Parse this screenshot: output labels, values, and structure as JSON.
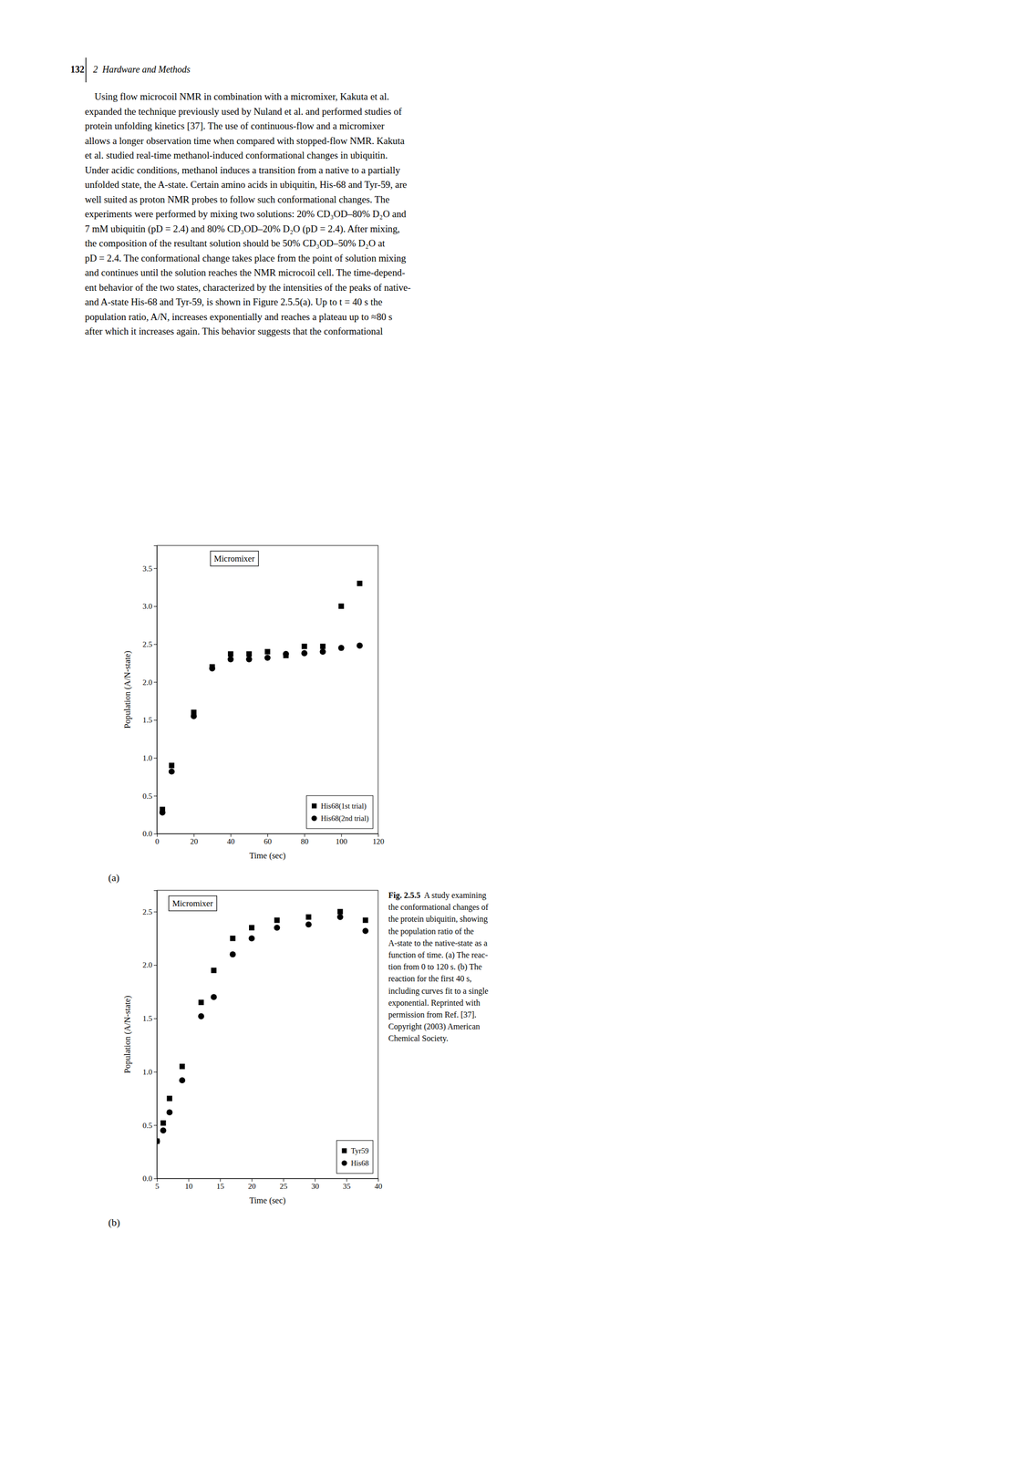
{
  "page": {
    "header_num": "132",
    "header_text": "2  Hardware and Methods",
    "body": [
      "    Using flow microcoil NMR in combination with a micromixer, Kakuta et al.",
      "expanded the technique previously used by Nuland et al. and performed studies of",
      "protein unfolding kinetics [37]. The use of continuous-flow and a micromixer",
      "allows a longer observation time when compared with stopped-flow NMR. Kakuta",
      "et al. studied real-time methanol-induced conformational changes in ubiquitin.",
      "Under acidic conditions, methanol induces a transition from a native to a partially",
      "unfolded state, the A-state. Certain amino acids in ubiquitin, His-68 and Tyr-59, are",
      "well suited as proton NMR probes to follow such conformational changes. The",
      "experiments were performed by mixing two solutions: 20% CD₃OD–80% D₂O and",
      "7 mM ubiquitin (pD = 2.4) and 80% CD₃OD–20% D₂O (pD = 2.4). After mixing,",
      "the composition of the resultant solution should be 50% CD₃OD–50% D₂O at",
      "pD = 2.4. The conformational change takes place from the point of solution mixing",
      "and continues until the solution reaches the NMR microcoil cell. The time-depend-",
      "ent behavior of the two states, characterized by the intensities of the peaks of native-",
      "and A-state His-68 and Tyr-59, is shown in Figure 2.5.5(a). Up to t = 40 s the",
      "population ratio, A/N, increases exponentially and reaches a plateau up to ≈80 s",
      "after which it increases again. This behavior suggests that the conformational"
    ],
    "caption_bold": "Fig. 2.5.5",
    "caption_rest": [
      "  A study examining",
      "the conformational changes of",
      "the protein ubiquitin, showing",
      "the population ratio of the",
      "A-state to the native-state as a",
      "function of time. (a) The reac-",
      "tion from 0 to 120 s. (b) The",
      "reaction for the first 40 s,",
      "including curves fit to a single",
      "exponential. Reprinted with",
      "permission from Ref. [37].",
      "Copyright (2003) American",
      "Chemical Society."
    ]
  },
  "chart_data": [
    {
      "type": "scatter",
      "title": "(a)",
      "xlabel": "Time (sec)",
      "ylabel": "Population (A/N-state)",
      "annotations": [
        "Micromixer"
      ],
      "xlim": [
        0,
        120
      ],
      "ylim": [
        0.0,
        3.8
      ],
      "xticks": [
        0,
        20,
        40,
        60,
        80,
        100,
        120
      ],
      "yticks": [
        {
          "value": 0.0,
          "label": "0.0"
        },
        0.5,
        {
          "value": 1.0,
          "label": "1.0"
        },
        1.5,
        {
          "value": 2.0,
          "label": "2.0"
        },
        2.5,
        {
          "value": 3.0,
          "label": "3.0"
        },
        3.5
      ],
      "legend": "lower right",
      "series": [
        {
          "name": "His68(1st trial)",
          "color": "#000000",
          "marker": "square",
          "x": [
            3,
            8,
            20,
            30,
            40,
            50,
            60,
            70,
            80,
            90,
            100,
            110
          ],
          "values": [
            0.32,
            0.9,
            1.6,
            2.2,
            2.37,
            2.37,
            2.4,
            2.35,
            2.47,
            2.47,
            3.0,
            3.3
          ]
        },
        {
          "name": "His68(2nd trial)",
          "color": "#000000",
          "marker": "circle",
          "x": [
            3,
            8,
            20,
            30,
            40,
            50,
            60,
            70,
            80,
            90,
            100,
            110
          ],
          "values": [
            0.28,
            0.82,
            1.55,
            2.18,
            2.3,
            2.3,
            2.32,
            2.37,
            2.38,
            2.4,
            2.45,
            2.48
          ]
        }
      ]
    },
    {
      "type": "scatter",
      "title": "(b)",
      "xlabel": "Time (sec)",
      "ylabel": "Population (A/N-state)",
      "annotations": [
        "Micromixer"
      ],
      "xlim": [
        5,
        40
      ],
      "ylim": [
        0.0,
        2.7
      ],
      "xticks": [
        5,
        10,
        15,
        20,
        25,
        30,
        35,
        40
      ],
      "yticks": [
        {
          "value": 0.0,
          "label": "0.0"
        },
        0.5,
        {
          "value": 1.0,
          "label": "1.0"
        },
        1.5,
        {
          "value": 2.0,
          "label": "2.0"
        },
        2.5
      ],
      "legend": "lower right",
      "series": [
        {
          "name": "Tyr59",
          "color": "#000000",
          "marker": "square",
          "x": [
            5,
            6,
            7,
            9,
            12,
            14,
            17,
            20,
            24,
            29,
            34,
            38
          ],
          "values": [
            0.35,
            0.52,
            0.75,
            1.05,
            1.65,
            1.95,
            2.25,
            2.35,
            2.42,
            2.45,
            2.5,
            2.42
          ]
        },
        {
          "name": "His68",
          "color": "#000000",
          "marker": "circle",
          "x": [
            5,
            6,
            7,
            9,
            12,
            14,
            17,
            20,
            24,
            29,
            34,
            38
          ],
          "values": [
            0.35,
            0.45,
            0.62,
            0.92,
            1.52,
            1.7,
            2.1,
            2.25,
            2.35,
            2.38,
            2.45,
            2.32
          ]
        }
      ]
    }
  ]
}
